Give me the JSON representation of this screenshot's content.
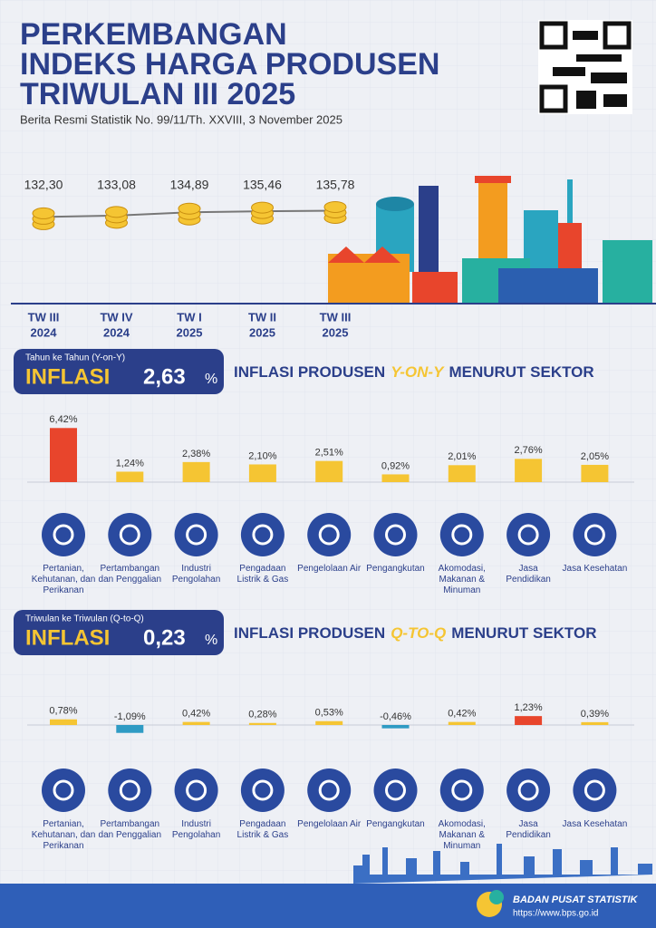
{
  "header": {
    "title_lines": [
      "PERKEMBANGAN",
      "INDEKS HARGA PRODUSEN",
      "TRIWULAN III 2025"
    ],
    "subtitle": "Berita Resmi Statistik No. 99/11/Th. XXVIII, 3 November 2025"
  },
  "trend": {
    "periods": [
      {
        "quarter": "TW III",
        "year": "2024"
      },
      {
        "quarter": "TW IV",
        "year": "2024"
      },
      {
        "quarter": "TW I",
        "year": "2025"
      },
      {
        "quarter": "TW II",
        "year": "2025"
      },
      {
        "quarter": "TW III",
        "year": "2025"
      }
    ],
    "values": [
      132.3,
      133.08,
      134.89,
      135.46,
      135.78
    ],
    "value_labels": [
      "132,30",
      "133,08",
      "134,89",
      "135,46",
      "135,78"
    ]
  },
  "yoy": {
    "caption": "Tahun ke Tahun (Y-on-Y)",
    "label": "INFLASI",
    "value": "2,63",
    "unit": "%",
    "heading": [
      "INFLASI PRODUSEN",
      "Y-ON-Y",
      "MENURUT SEKTOR"
    ],
    "values": [
      6.42,
      1.24,
      2.38,
      2.1,
      2.51,
      0.92,
      2.01,
      2.76,
      2.05
    ],
    "value_labels": [
      "6,42%",
      "1,24%",
      "2,38%",
      "2,10%",
      "2,51%",
      "0,92%",
      "2,01%",
      "2,76%",
      "2,05%"
    ],
    "colors": [
      "#e8452c",
      "#f5c533",
      "#f5c533",
      "#f5c533",
      "#f5c533",
      "#f5c533",
      "#f5c533",
      "#f5c533",
      "#f5c533"
    ]
  },
  "qoq": {
    "caption": "Triwulan ke Triwulan (Q-to-Q)",
    "label": "INFLASI",
    "value": "0,23",
    "unit": "%",
    "heading": [
      "INFLASI PRODUSEN",
      "Q-TO-Q",
      "MENURUT SEKTOR"
    ],
    "values": [
      0.78,
      -1.09,
      0.42,
      0.28,
      0.53,
      -0.46,
      0.42,
      1.23,
      0.39
    ],
    "value_labels": [
      "0,78%",
      "-1,09%",
      "0,42%",
      "0,28%",
      "0,53%",
      "-0,46%",
      "0,42%",
      "1,23%",
      "0,39%"
    ],
    "colors": [
      "#f5c533",
      "#2f9bc4",
      "#f5c533",
      "#f5c533",
      "#f5c533",
      "#2f9bc4",
      "#f5c533",
      "#e8452c",
      "#f5c533"
    ]
  },
  "sectors": [
    "Pertanian, Kehutanan, dan Perikanan",
    "Pertambangan dan Penggalian",
    "Industri Pengolahan",
    "Pengadaan Listrik & Gas",
    "Pengelolaan Air",
    "Pengangkutan",
    "Akomodasi, Makanan & Minuman",
    "Jasa Pendidikan",
    "Jasa Kesehatan"
  ],
  "footer": {
    "org": "BADAN PUSAT STATISTIK",
    "url": "https://www.bps.go.id"
  }
}
